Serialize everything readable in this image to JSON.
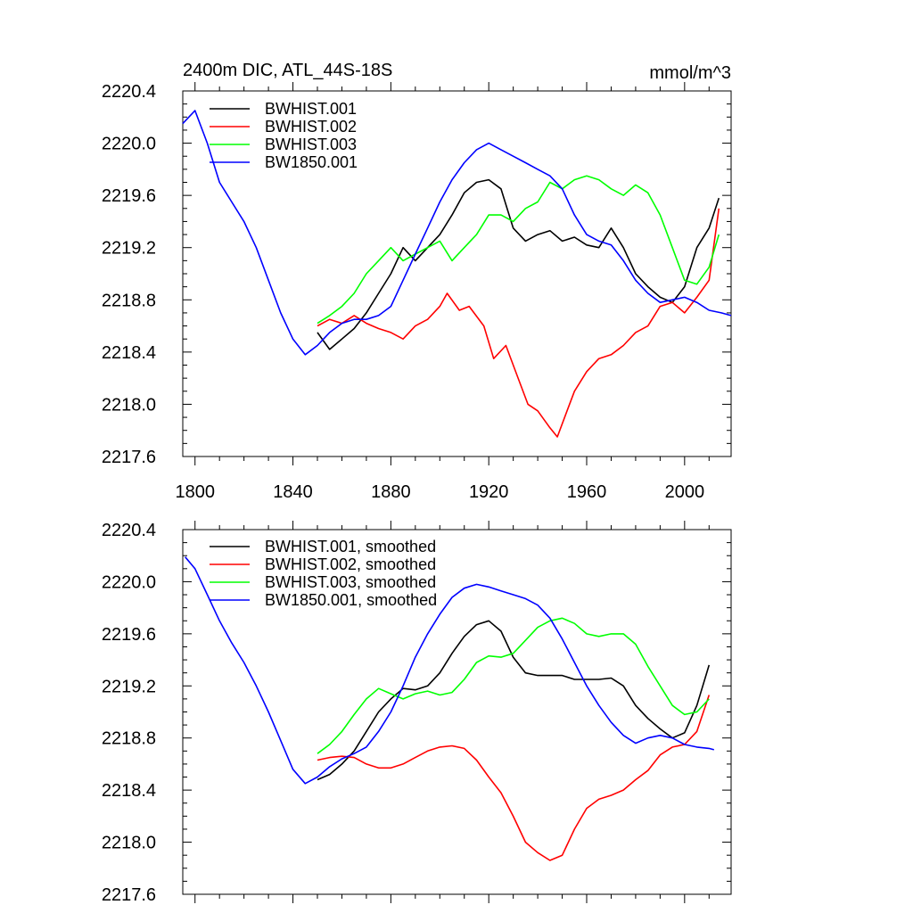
{
  "chart_data": [
    {
      "type": "line",
      "title": "2400m DIC, ATL_44S-18S",
      "units": "mmol/m^3",
      "xlim": [
        1795,
        2019
      ],
      "ylim": [
        2217.6,
        2220.4
      ],
      "xticks": [
        1800,
        1840,
        1880,
        1920,
        1960,
        2000
      ],
      "xtick_labels": [
        "1800",
        "1840",
        "1880",
        "1920",
        "1960",
        "2000"
      ],
      "yticks": [
        2217.6,
        2218.0,
        2218.4,
        2218.8,
        2219.2,
        2219.6,
        2220.0,
        2220.4
      ],
      "ytick_labels": [
        "2217.6",
        "2218.0",
        "2218.4",
        "2218.8",
        "2219.2",
        "2219.6",
        "2220.0",
        "2220.4"
      ],
      "legend_position": "top-left",
      "series": [
        {
          "name": "BWHIST.001",
          "color": "#000000",
          "x": [
            1850,
            1855,
            1860,
            1865,
            1870,
            1875,
            1880,
            1885,
            1890,
            1895,
            1900,
            1905,
            1910,
            1915,
            1920,
            1925,
            1930,
            1935,
            1940,
            1945,
            1950,
            1955,
            1960,
            1965,
            1970,
            1975,
            1980,
            1985,
            1990,
            1995,
            2000,
            2005,
            2010,
            2014
          ],
          "y": [
            2218.55,
            2218.42,
            2218.5,
            2218.58,
            2218.7,
            2218.85,
            2219.0,
            2219.2,
            2219.1,
            2219.2,
            2219.3,
            2219.45,
            2219.62,
            2219.7,
            2219.72,
            2219.65,
            2219.35,
            2219.25,
            2219.3,
            2219.33,
            2219.25,
            2219.28,
            2219.22,
            2219.2,
            2219.35,
            2219.2,
            2219.0,
            2218.9,
            2218.82,
            2218.78,
            2218.9,
            2219.2,
            2219.35,
            2219.58
          ]
        },
        {
          "name": "BWHIST.002",
          "color": "#ff0000",
          "x": [
            1850,
            1855,
            1860,
            1865,
            1870,
            1875,
            1880,
            1885,
            1890,
            1895,
            1900,
            1903,
            1908,
            1912,
            1918,
            1922,
            1927,
            1932,
            1936,
            1940,
            1945,
            1948,
            1952,
            1955,
            1960,
            1965,
            1970,
            1975,
            1980,
            1985,
            1990,
            1995,
            2000,
            2005,
            2010,
            2014
          ],
          "y": [
            2218.6,
            2218.65,
            2218.62,
            2218.68,
            2218.62,
            2218.58,
            2218.55,
            2218.5,
            2218.6,
            2218.65,
            2218.75,
            2218.85,
            2218.72,
            2218.75,
            2218.6,
            2218.35,
            2218.45,
            2218.2,
            2218.0,
            2217.95,
            2217.82,
            2217.75,
            2217.95,
            2218.1,
            2218.25,
            2218.35,
            2218.38,
            2218.45,
            2218.55,
            2218.6,
            2218.75,
            2218.78,
            2218.7,
            2218.82,
            2218.95,
            2219.5
          ]
        },
        {
          "name": "BWHIST.003",
          "color": "#00ff00",
          "x": [
            1850,
            1855,
            1860,
            1865,
            1870,
            1875,
            1880,
            1885,
            1890,
            1895,
            1900,
            1905,
            1910,
            1915,
            1920,
            1925,
            1930,
            1935,
            1940,
            1945,
            1950,
            1955,
            1960,
            1965,
            1970,
            1975,
            1980,
            1985,
            1990,
            1995,
            2000,
            2005,
            2010,
            2014
          ],
          "y": [
            2218.62,
            2218.68,
            2218.75,
            2218.85,
            2219.0,
            2219.1,
            2219.2,
            2219.1,
            2219.15,
            2219.2,
            2219.25,
            2219.1,
            2219.2,
            2219.3,
            2219.45,
            2219.45,
            2219.4,
            2219.5,
            2219.55,
            2219.7,
            2219.65,
            2219.72,
            2219.75,
            2219.72,
            2219.65,
            2219.6,
            2219.68,
            2219.62,
            2219.45,
            2219.2,
            2218.95,
            2218.92,
            2219.05,
            2219.3
          ]
        },
        {
          "name": "BW1850.001",
          "color": "#0000ff",
          "x": [
            1795,
            1800,
            1805,
            1810,
            1815,
            1820,
            1825,
            1830,
            1835,
            1840,
            1845,
            1850,
            1855,
            1860,
            1865,
            1870,
            1875,
            1880,
            1885,
            1890,
            1895,
            1900,
            1905,
            1910,
            1915,
            1920,
            1925,
            1930,
            1935,
            1940,
            1945,
            1950,
            1955,
            1960,
            1965,
            1970,
            1975,
            1980,
            1985,
            1990,
            1995,
            2000,
            2005,
            2010,
            2015,
            2019
          ],
          "y": [
            2220.15,
            2220.25,
            2220.0,
            2219.7,
            2219.55,
            2219.4,
            2219.2,
            2218.95,
            2218.7,
            2218.5,
            2218.38,
            2218.45,
            2218.55,
            2218.62,
            2218.65,
            2218.65,
            2218.68,
            2218.75,
            2218.95,
            2219.15,
            2219.35,
            2219.55,
            2219.72,
            2219.85,
            2219.95,
            2220.0,
            2219.95,
            2219.9,
            2219.85,
            2219.8,
            2219.75,
            2219.65,
            2219.45,
            2219.3,
            2219.25,
            2219.22,
            2219.1,
            2218.95,
            2218.85,
            2218.78,
            2218.8,
            2218.82,
            2218.78,
            2218.72,
            2218.7,
            2218.68
          ]
        }
      ]
    },
    {
      "type": "line",
      "xlim": [
        1795,
        2019
      ],
      "ylim": [
        2217.6,
        2220.4
      ],
      "yticks": [
        2217.6,
        2218.0,
        2218.4,
        2218.8,
        2219.2,
        2219.6,
        2220.0,
        2220.4
      ],
      "ytick_labels": [
        "2217.6",
        "2218.0",
        "2218.4",
        "2218.8",
        "2219.2",
        "2219.6",
        "2220.0",
        "2220.4"
      ],
      "xticks": [
        1800,
        1840,
        1880,
        1920,
        1960,
        2000
      ],
      "legend_position": "top-left",
      "series": [
        {
          "name": "BWHIST.001, smoothed",
          "color": "#000000",
          "x": [
            1850,
            1855,
            1860,
            1865,
            1870,
            1875,
            1880,
            1885,
            1890,
            1895,
            1900,
            1905,
            1910,
            1915,
            1920,
            1925,
            1930,
            1935,
            1940,
            1945,
            1950,
            1955,
            1960,
            1965,
            1970,
            1975,
            1980,
            1985,
            1990,
            1995,
            2000,
            2005,
            2010
          ],
          "y": [
            2218.48,
            2218.52,
            2218.6,
            2218.7,
            2218.85,
            2219.0,
            2219.1,
            2219.18,
            2219.17,
            2219.2,
            2219.3,
            2219.45,
            2219.58,
            2219.67,
            2219.7,
            2219.62,
            2219.42,
            2219.3,
            2219.28,
            2219.28,
            2219.28,
            2219.25,
            2219.25,
            2219.25,
            2219.26,
            2219.2,
            2219.05,
            2218.95,
            2218.87,
            2218.8,
            2218.84,
            2219.05,
            2219.36
          ]
        },
        {
          "name": "BWHIST.002, smoothed",
          "color": "#ff0000",
          "x": [
            1850,
            1855,
            1860,
            1865,
            1870,
            1875,
            1880,
            1885,
            1890,
            1895,
            1900,
            1905,
            1910,
            1915,
            1920,
            1925,
            1930,
            1935,
            1940,
            1945,
            1950,
            1955,
            1960,
            1965,
            1970,
            1975,
            1980,
            1985,
            1990,
            1995,
            2000,
            2005,
            2010
          ],
          "y": [
            2218.63,
            2218.65,
            2218.66,
            2218.65,
            2218.6,
            2218.57,
            2218.57,
            2218.6,
            2218.65,
            2218.7,
            2218.73,
            2218.74,
            2218.72,
            2218.63,
            2218.5,
            2218.38,
            2218.2,
            2218.0,
            2217.92,
            2217.86,
            2217.9,
            2218.1,
            2218.26,
            2218.33,
            2218.36,
            2218.4,
            2218.48,
            2218.55,
            2218.67,
            2218.73,
            2218.75,
            2218.85,
            2219.13
          ]
        },
        {
          "name": "BWHIST.003, smoothed",
          "color": "#00ff00",
          "x": [
            1850,
            1855,
            1860,
            1865,
            1870,
            1875,
            1880,
            1885,
            1890,
            1895,
            1900,
            1905,
            1910,
            1915,
            1920,
            1925,
            1930,
            1935,
            1940,
            1945,
            1950,
            1955,
            1960,
            1965,
            1970,
            1975,
            1980,
            1985,
            1990,
            1995,
            2000,
            2005,
            2010
          ],
          "y": [
            2218.68,
            2218.75,
            2218.85,
            2218.98,
            2219.1,
            2219.18,
            2219.14,
            2219.1,
            2219.14,
            2219.16,
            2219.13,
            2219.15,
            2219.25,
            2219.38,
            2219.43,
            2219.42,
            2219.45,
            2219.55,
            2219.65,
            2219.7,
            2219.72,
            2219.68,
            2219.6,
            2219.58,
            2219.6,
            2219.6,
            2219.52,
            2219.35,
            2219.2,
            2219.05,
            2218.98,
            2219.0,
            2219.1
          ]
        },
        {
          "name": "BW1850.001, smoothed",
          "color": "#0000ff",
          "x": [
            1796,
            1800,
            1805,
            1810,
            1815,
            1820,
            1825,
            1830,
            1835,
            1840,
            1845,
            1850,
            1855,
            1860,
            1865,
            1870,
            1875,
            1880,
            1885,
            1890,
            1895,
            1900,
            1905,
            1910,
            1915,
            1920,
            1925,
            1930,
            1935,
            1940,
            1945,
            1950,
            1955,
            1960,
            1965,
            1970,
            1975,
            1980,
            1985,
            1990,
            1995,
            2000,
            2005,
            2010,
            2012
          ],
          "y": [
            2220.19,
            2220.1,
            2219.9,
            2219.7,
            2219.53,
            2219.38,
            2219.2,
            2219.0,
            2218.78,
            2218.56,
            2218.45,
            2218.5,
            2218.58,
            2218.64,
            2218.68,
            2218.73,
            2218.85,
            2219.0,
            2219.2,
            2219.42,
            2219.6,
            2219.75,
            2219.88,
            2219.95,
            2219.98,
            2219.96,
            2219.93,
            2219.9,
            2219.87,
            2219.82,
            2219.72,
            2219.56,
            2219.38,
            2219.2,
            2219.05,
            2218.92,
            2218.82,
            2218.76,
            2218.8,
            2218.82,
            2218.8,
            2218.75,
            2218.73,
            2218.72,
            2218.71
          ]
        }
      ]
    }
  ]
}
